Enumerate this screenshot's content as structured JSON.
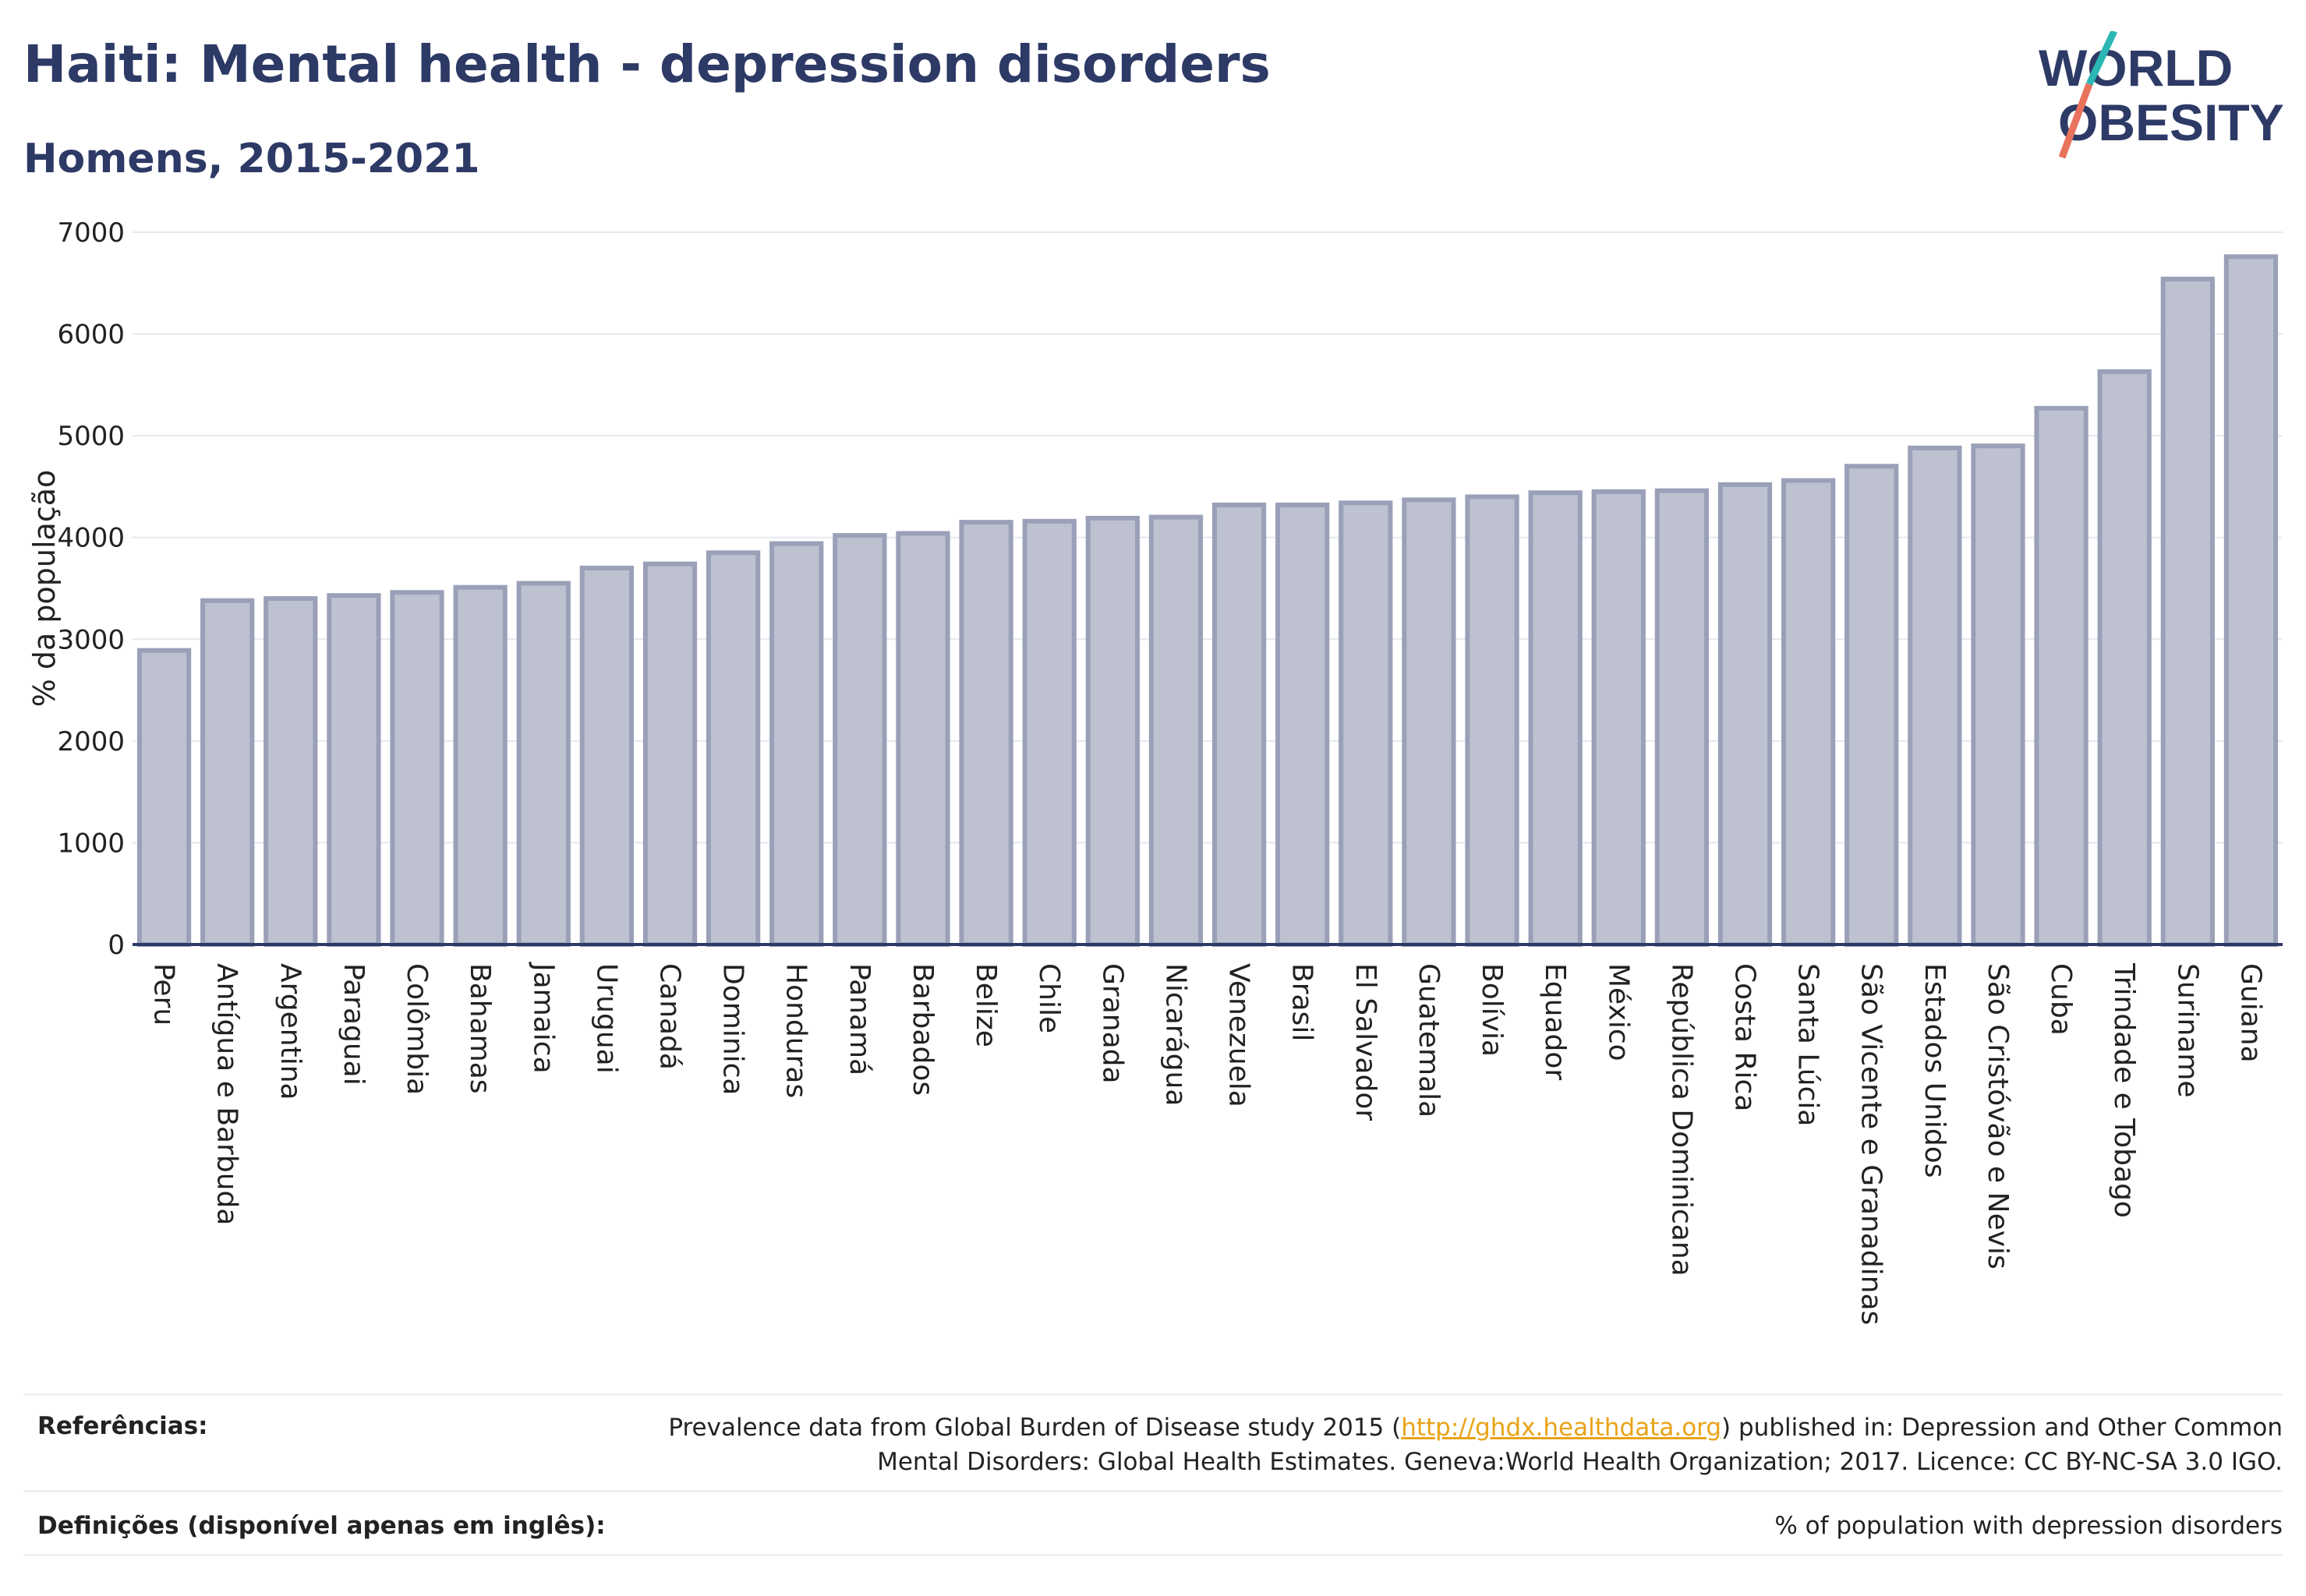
{
  "header": {
    "title": "Haiti: Mental health - depression disorders",
    "subtitle": "Homens, 2015-2021",
    "logo_line1": "WORLD",
    "logo_line2": "OBESITY"
  },
  "colors": {
    "bar_fill": "#bec2d0",
    "bar_stroke": "#9aa0b8",
    "title": "#2d3a66",
    "grid": "#e6e8ef",
    "link": "#e8a317",
    "logo_teal": "#2bb7b3",
    "logo_coral": "#e8725c"
  },
  "chart_data": {
    "type": "bar",
    "title": "Haiti: Mental health - depression disorders",
    "subtitle": "Homens, 2015-2021",
    "ylabel": "% da população",
    "xlabel": "",
    "ylim": [
      0,
      7000
    ],
    "yticks": [
      0,
      1000,
      2000,
      3000,
      4000,
      5000,
      6000,
      7000
    ],
    "grid": true,
    "categories": [
      "Peru",
      "Antígua e Barbuda",
      "Argentina",
      "Paraguai",
      "Colômbia",
      "Bahamas",
      "Jamaica",
      "Uruguai",
      "Canadá",
      "Dominica",
      "Honduras",
      "Panamá",
      "Barbados",
      "Belize",
      "Chile",
      "Granada",
      "Nicarágua",
      "Venezuela",
      "Brasil",
      "El Salvador",
      "Guatemala",
      "Bolívia",
      "Equador",
      "México",
      "República Dominicana",
      "Costa Rica",
      "Santa Lúcia",
      "São Vicente e Granadinas",
      "Estados Unidos",
      "São Cristóvão e Nevis",
      "Cuba",
      "Trindade e Tobago",
      "Suriname",
      "Guiana"
    ],
    "values": [
      2890,
      3380,
      3400,
      3430,
      3460,
      3510,
      3550,
      3700,
      3740,
      3850,
      3940,
      4020,
      4040,
      4150,
      4160,
      4190,
      4200,
      4320,
      4320,
      4340,
      4370,
      4400,
      4440,
      4450,
      4460,
      4520,
      4560,
      4700,
      4880,
      4900,
      5270,
      5630,
      6540,
      6760
    ]
  },
  "footer": {
    "references_label": "Referências:",
    "references_pre": "Prevalence data from Global Burden of Disease study 2015 (",
    "references_link": "http://ghdx.healthdata.org",
    "references_post": ") published in: Depression and Other Common",
    "references_line2": "Mental Disorders: Global Health Estimates. Geneva:World Health Organization; 2017. Licence: CC BY-NC-SA 3.0 IGO.",
    "definitions_label": "Definições (disponível apenas em inglês):",
    "definitions_text": "% of population with depression disorders"
  }
}
